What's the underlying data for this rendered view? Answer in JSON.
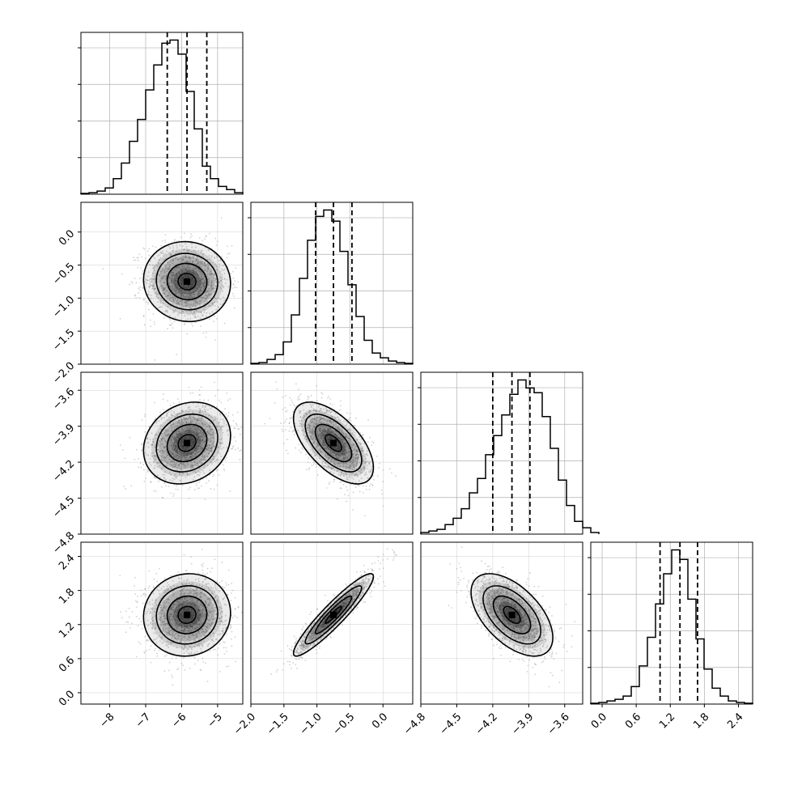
{
  "chart_data": {
    "type": "corner",
    "title": "",
    "parameters": [
      {
        "label": "",
        "range": [
          -8.8,
          -4.3
        ],
        "ticks": [
          "−8",
          "−7",
          "−6",
          "−5"
        ],
        "tick_values": [
          -8,
          -7,
          -6,
          -5
        ],
        "median": -5.85,
        "quantiles": [
          -6.4,
          -5.85,
          -5.3
        ],
        "histogram": {
          "edges_start": -8.8,
          "bin_width": 0.225,
          "counts": [
            0.5,
            1,
            2,
            4,
            10,
            20,
            34,
            48,
            67,
            83,
            97,
            99,
            90,
            66,
            42,
            18,
            10,
            5,
            3,
            1
          ]
        }
      },
      {
        "label": "",
        "range": [
          -2.0,
          0.45
        ],
        "ticks": [
          "−2.0",
          "−1.5",
          "−1.0",
          "−0.5",
          "0.0"
        ],
        "tick_values": [
          -2.0,
          -1.5,
          -1.0,
          -0.5,
          0.0
        ],
        "median": -0.75,
        "quantiles": [
          -1.02,
          -0.75,
          -0.47
        ],
        "histogram": {
          "edges_start": -2.0,
          "bin_width": 0.1225,
          "counts": [
            0.5,
            1,
            3,
            6,
            14,
            31,
            54,
            78,
            93,
            97,
            90,
            71,
            50,
            30,
            15,
            7,
            4,
            2,
            1,
            0.5
          ]
        }
      },
      {
        "label": "",
        "range": [
          -4.8,
          -3.45
        ],
        "ticks": [
          "−4.8",
          "−4.5",
          "−4.2",
          "−3.9",
          "−3.6"
        ],
        "tick_values": [
          -4.8,
          -4.5,
          -4.2,
          -3.9,
          -3.6
        ],
        "median": -4.04,
        "quantiles": [
          -4.2,
          -4.04,
          -3.89
        ],
        "histogram": {
          "edges_start": -4.8,
          "bin_width": 0.0675,
          "counts": [
            1,
            2,
            3,
            6,
            10,
            16,
            26,
            35,
            50,
            62,
            75,
            88,
            97,
            92,
            89,
            74,
            54,
            34,
            18,
            8,
            4,
            1
          ]
        }
      },
      {
        "label": "",
        "range": [
          -0.2,
          2.65
        ],
        "ticks": [
          "0.0",
          "0.6",
          "1.2",
          "1.8",
          "2.4"
        ],
        "tick_values": [
          0.0,
          0.6,
          1.2,
          1.8,
          2.4
        ],
        "median": 1.37,
        "quantiles": [
          1.02,
          1.37,
          1.68
        ],
        "histogram": {
          "edges_start": -0.2,
          "bin_width": 0.1425,
          "counts": [
            0.5,
            1,
            2,
            3,
            5,
            11,
            24,
            42,
            63,
            82,
            97,
            91,
            66,
            41,
            22,
            10,
            5,
            2,
            1,
            0.5
          ]
        }
      }
    ],
    "left_axis_ticks": {
      "row1": [
        "0.0",
        "−0.5",
        "−1.0",
        "−1.5",
        "−2.0"
      ],
      "row2": [
        "−3.6",
        "−3.9",
        "−4.2",
        "−4.5",
        "−4.8"
      ],
      "row3": [
        "2.4",
        "1.8",
        "1.2",
        "0.6",
        "0.0"
      ]
    },
    "correlations": {
      "1-0": -0.05,
      "2-0": 0.18,
      "2-1": -0.6,
      "3-0": 0.05,
      "3-1": 0.93,
      "3-2": -0.55
    },
    "samples_per_panel": 1400,
    "colors": {
      "hist_line": "#000000",
      "median_line": "#000000",
      "scatter": "#9a9a9a",
      "density_fill": "#000000",
      "contour": "#000000",
      "grid": "#b0b0b0"
    }
  }
}
